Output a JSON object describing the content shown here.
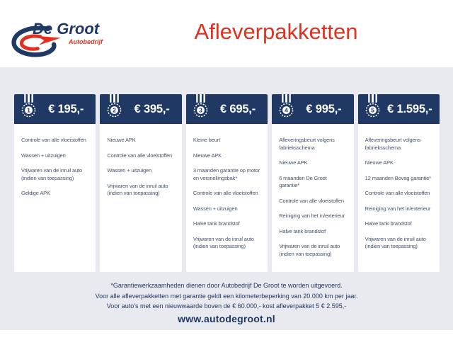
{
  "brand": {
    "name": "De Groot",
    "subtitle": "Autobedrijf"
  },
  "title": "Afleverpakketten",
  "packages": [
    {
      "number": "1",
      "price": "€ 195,-",
      "items": [
        "Controle van alle vloeistoffen",
        "Wassen + uitzuigen",
        "Vrijwaren van de inruil auto (indien van toepassing)",
        "Geldige APK"
      ]
    },
    {
      "number": "2",
      "price": "€ 395,-",
      "items": [
        "Nieuwe APK",
        "Controle van alle vloeistoffen",
        "Wassen + uitzuigen",
        "Vrijwaren van de inruil auto (indien van toepassing)"
      ]
    },
    {
      "number": "3",
      "price": "€ 695,-",
      "items": [
        "Kleine beurt",
        "Nieuwe APK",
        "3 maanden garantie op motor en versnellingsbak*",
        "Controle van alle vloeistoffen",
        "Wassen + uitzuigen",
        "Halve tank brandstof",
        "Vrijwaren van de inruil auto (indien van toepassing)"
      ]
    },
    {
      "number": "4",
      "price": "€ 995,-",
      "items": [
        "Afleveringsbeurt volgens fabrieksschema",
        "Nieuwe APK",
        "6 maanden De Groot garantie*",
        "Controle van alle vloeistoffen",
        "Reiniging van het in/exterieur",
        "Halve tank brandstof",
        "Vrijwaren van de inruil auto (indien van toepassing)"
      ]
    },
    {
      "number": "5",
      "price": "€ 1.595,-",
      "items": [
        "Afleveringsbeurt volgens fabrieksschema",
        "Nieuwe APK",
        "12 maanden Bovag garantie*",
        "Controle van alle vloeistoffen",
        "Reiniging van het in/exterieur",
        "Halve tank brandstof",
        "Vrijwaren van de inruil auto (indien van toepassing)"
      ]
    }
  ],
  "footer": {
    "notes": [
      "*Garantiewerkzaamheden dienen door Autobedrijf De Groot te worden uitgevoerd.",
      "Voor alle afleverpakketten met garantie geldt een kilometerbeperking van 20.000 km per jaar.",
      "Voor auto's met een nieuwwaarde boven de € 60.000,- kost afleverpakket 5 € 2.595,-"
    ],
    "website": "www.autodegroot.nl"
  },
  "icons": {
    "medal": "medal-icon",
    "logo": "degroot-logo-swoosh-icon"
  },
  "colors": {
    "navy": "#1F3864",
    "red": "#E0301E",
    "background": "#E9EAF0",
    "item_text": "#44546A",
    "card_body": "#FFFFFF"
  }
}
